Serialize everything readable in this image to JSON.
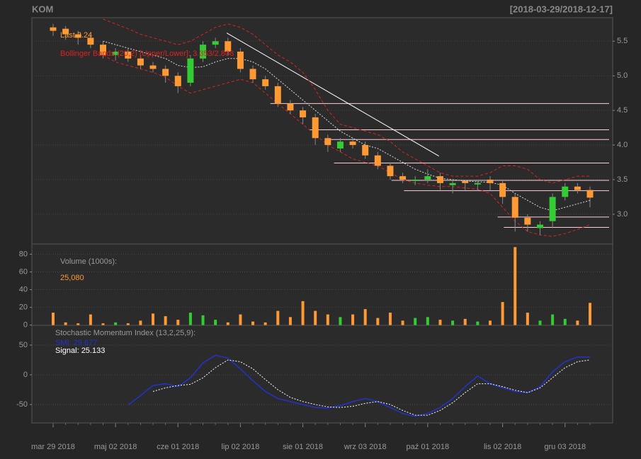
{
  "header": {
    "symbol": "KOM",
    "range": "[2018-03-29/2018-12-17]"
  },
  "chart_data": [
    {
      "type": "candlestick",
      "last_label": "Last 3.24",
      "bands_label": "Bollinger Bands (20,2) [Upper/Lower]: 3.353/2.808",
      "categories": [
        "mar 29 2018",
        null,
        null,
        null,
        null,
        "maj 02 2018",
        null,
        null,
        null,
        null,
        "cze 01 2018",
        null,
        null,
        null,
        null,
        "lip 02 2018",
        null,
        null,
        null,
        null,
        "sie 01 2018",
        null,
        null,
        null,
        null,
        "wrz 03 2018",
        null,
        null,
        null,
        null,
        "paź 01 2018",
        null,
        null,
        null,
        null,
        null,
        "lis 02 2018",
        null,
        null,
        null,
        null,
        "gru 03 2018",
        null,
        null
      ],
      "open": [
        5.7,
        5.68,
        5.6,
        5.55,
        5.45,
        5.3,
        5.35,
        5.25,
        5.15,
        5.1,
        5.0,
        4.9,
        5.25,
        5.45,
        5.5,
        5.35,
        5.1,
        4.95,
        4.85,
        4.6,
        4.5,
        4.4,
        4.1,
        3.95,
        4.05,
        4.0,
        3.85,
        3.7,
        3.55,
        3.48,
        3.5,
        3.55,
        3.42,
        3.48,
        3.43,
        3.5,
        3.45,
        3.25,
        2.95,
        2.8,
        2.9,
        3.25,
        3.4,
        3.35
      ],
      "high": [
        5.75,
        5.72,
        5.65,
        5.6,
        5.5,
        5.4,
        5.4,
        5.3,
        5.2,
        5.15,
        5.05,
        5.3,
        5.5,
        5.55,
        5.55,
        5.4,
        5.15,
        5.0,
        4.9,
        4.65,
        4.55,
        4.45,
        4.15,
        4.1,
        4.1,
        4.05,
        3.9,
        3.75,
        3.6,
        3.55,
        3.65,
        3.6,
        3.5,
        3.5,
        3.5,
        3.55,
        3.5,
        3.3,
        3.0,
        2.9,
        3.3,
        3.45,
        3.45,
        3.4
      ],
      "low": [
        5.58,
        5.52,
        5.45,
        5.4,
        5.25,
        5.22,
        5.2,
        5.1,
        5.05,
        4.9,
        4.75,
        4.85,
        5.2,
        5.4,
        5.3,
        5.05,
        4.9,
        4.8,
        4.55,
        4.45,
        4.3,
        4.0,
        3.9,
        3.9,
        3.95,
        3.8,
        3.65,
        3.5,
        3.45,
        3.42,
        3.45,
        3.35,
        3.3,
        3.35,
        3.35,
        3.35,
        3.15,
        2.75,
        2.75,
        2.7,
        2.8,
        3.2,
        3.3,
        3.1
      ],
      "close": [
        5.65,
        5.6,
        5.55,
        5.45,
        5.3,
        5.35,
        5.25,
        5.15,
        5.1,
        5.0,
        4.85,
        5.25,
        5.45,
        5.5,
        5.35,
        5.1,
        4.95,
        4.85,
        4.6,
        4.5,
        4.4,
        4.1,
        4.0,
        4.05,
        4.0,
        3.85,
        3.7,
        3.55,
        3.5,
        3.5,
        3.55,
        3.45,
        3.45,
        3.45,
        3.45,
        3.45,
        3.25,
        2.95,
        2.85,
        2.85,
        3.25,
        3.4,
        3.35,
        3.24
      ],
      "up_color": "#33cc33",
      "down_color": "#ff9933",
      "bands": {
        "color": "#dd2222",
        "mid_color": "#dddddd",
        "upper": [
          null,
          null,
          null,
          null,
          5.82,
          5.75,
          5.68,
          5.6,
          5.55,
          5.5,
          5.45,
          5.5,
          5.6,
          5.7,
          5.75,
          5.7,
          5.6,
          5.45,
          5.3,
          5.2,
          5.05,
          4.8,
          4.5,
          4.3,
          4.25,
          4.2,
          4.15,
          4.05,
          3.9,
          3.8,
          3.7,
          3.6,
          3.55,
          3.55,
          3.55,
          3.6,
          3.7,
          3.7,
          3.65,
          3.5,
          3.45,
          3.5,
          3.55,
          3.55
        ],
        "mid": [
          null,
          null,
          null,
          null,
          5.5,
          5.45,
          5.4,
          5.35,
          5.3,
          5.25,
          5.15,
          5.12,
          5.13,
          5.2,
          5.25,
          5.25,
          5.2,
          5.1,
          4.95,
          4.8,
          4.65,
          4.5,
          4.35,
          4.2,
          4.1,
          4.0,
          3.95,
          3.85,
          3.75,
          3.65,
          3.58,
          3.52,
          3.5,
          3.48,
          3.47,
          3.46,
          3.42,
          3.3,
          3.2,
          3.1,
          3.05,
          3.1,
          3.15,
          3.2
        ],
        "lower": [
          null,
          null,
          null,
          null,
          5.3,
          5.2,
          5.15,
          5.1,
          5.05,
          4.98,
          4.85,
          4.75,
          4.8,
          4.85,
          4.9,
          4.95,
          4.9,
          4.75,
          4.6,
          4.45,
          4.3,
          4.15,
          4.0,
          3.9,
          3.8,
          3.75,
          3.7,
          3.6,
          3.5,
          3.45,
          3.42,
          3.4,
          3.4,
          3.38,
          3.36,
          3.3,
          3.1,
          2.9,
          2.75,
          2.7,
          2.68,
          2.72,
          2.78,
          2.85
        ]
      },
      "hlines_color": "#ffd0d8",
      "hlines": [
        {
          "from": 17.4,
          "value": 4.6
        },
        {
          "from": 20.5,
          "value": 4.22
        },
        {
          "from": 22.2,
          "value": 4.08
        },
        {
          "from": 22.5,
          "value": 3.74
        },
        {
          "from": 27.1,
          "value": 3.49
        },
        {
          "from": 28.1,
          "value": 3.34
        },
        {
          "from": 35.6,
          "value": 2.96
        },
        {
          "from": 36.1,
          "value": 2.81
        }
      ],
      "trendline": {
        "color": "#ffffff",
        "x": [
          13.9,
          30.9
        ],
        "y": [
          5.62,
          3.84
        ]
      },
      "ylim": [
        2.57,
        5.84
      ],
      "yticks": [
        {
          "value": 3,
          "label": "3.0"
        },
        {
          "value": 3.5,
          "label": "3.5"
        },
        {
          "value": 4,
          "label": "4.0"
        },
        {
          "value": 4.5,
          "label": "4.5"
        },
        {
          "value": 5,
          "label": "5.0"
        },
        {
          "value": 5.5,
          "label": "5.5"
        }
      ],
      "grid": true
    },
    {
      "type": "bar",
      "title": "Volume (1000s):",
      "last_label": "25,080",
      "values": [
        14,
        3,
        2,
        12,
        2,
        3,
        2,
        5,
        13,
        10,
        6,
        14,
        11,
        6,
        3,
        12,
        4,
        3,
        16,
        9,
        27,
        16,
        12,
        9,
        12,
        18,
        8,
        14,
        5,
        8,
        9,
        6,
        5,
        7,
        4,
        5,
        26,
        88,
        14,
        5,
        12,
        7,
        5,
        25.08
      ],
      "ylim": [
        -0.3,
        91.5
      ],
      "yticks": [
        0,
        20,
        40,
        60,
        80
      ],
      "grid": true
    },
    {
      "type": "line",
      "title": "Stochastic Momentum Index (13,2,25,9):",
      "series": [
        {
          "name": "SMI: 29.677",
          "color": "#2233cc",
          "values": [
            null,
            null,
            null,
            null,
            null,
            null,
            -51,
            -35,
            -18,
            -15,
            -20,
            -5,
            20,
            33,
            28,
            10,
            -10,
            -28,
            -40,
            -45,
            -50,
            -55,
            -56,
            -52,
            -45,
            -40,
            -45,
            -55,
            -65,
            -70,
            -65,
            -55,
            -40,
            -20,
            -2,
            -15,
            -22,
            -28,
            -30,
            -20,
            5,
            22,
            30,
            29.677
          ]
        },
        {
          "name": "Signal: 25.133",
          "color": "#ffffff",
          "values": [
            null,
            null,
            null,
            null,
            null,
            null,
            null,
            null,
            -28,
            -22,
            -18,
            -16,
            -5,
            12,
            25,
            22,
            10,
            -8,
            -25,
            -38,
            -45,
            -50,
            -54,
            -55,
            -53,
            -48,
            -45,
            -50,
            -60,
            -68,
            -68,
            -60,
            -47,
            -30,
            -15,
            -15,
            -20,
            -26,
            -30,
            -22,
            -5,
            12,
            22,
            25.133
          ]
        }
      ],
      "ylim": [
        -81,
        83.3
      ],
      "yticks": [
        -50,
        0,
        50
      ],
      "grid": true
    }
  ]
}
